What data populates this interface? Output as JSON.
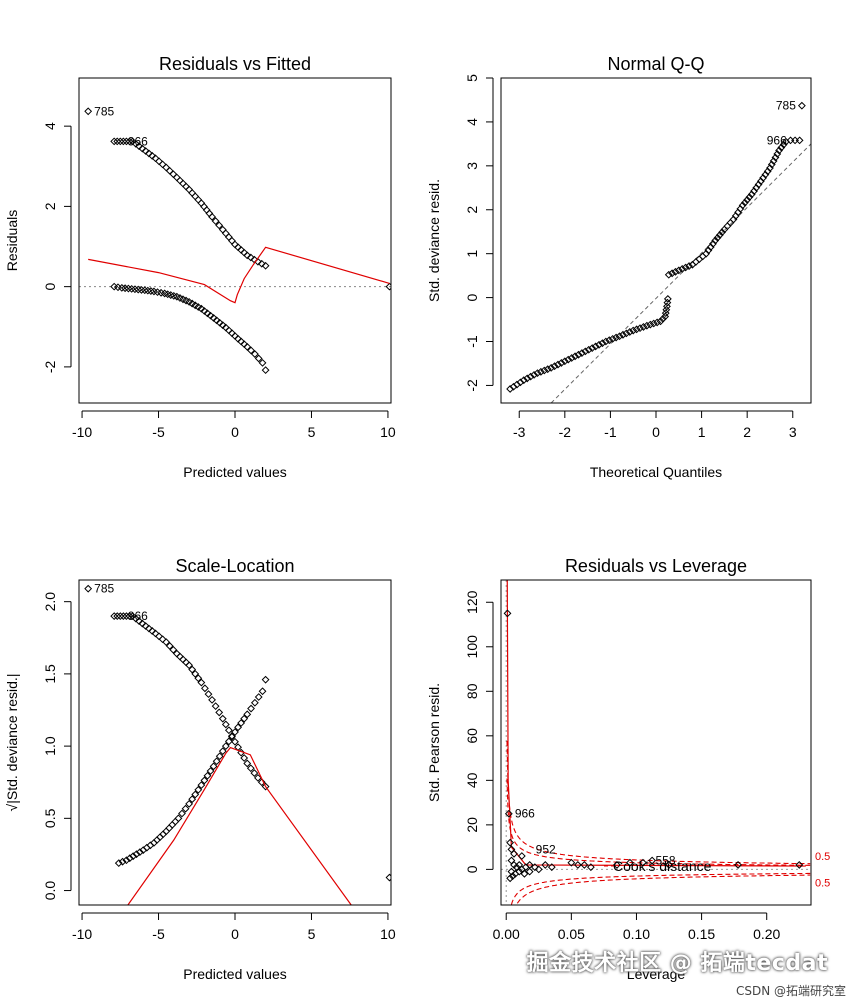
{
  "chart_data": [
    {
      "type": "scatter",
      "title": "Residuals vs Fitted",
      "xlabel": "Predicted values",
      "ylabel": "Residuals",
      "xlim": [
        -10.2,
        10.2
      ],
      "ylim": [
        -2.9,
        5.2
      ],
      "xticks": [
        -10,
        -5,
        0,
        5,
        10
      ],
      "yticks": [
        -2,
        0,
        2,
        4
      ],
      "ref_line": {
        "style": "dotted-horizontal",
        "value": 0
      },
      "points_upper": [
        [
          -9.6,
          4.37
        ],
        [
          -7.9,
          3.62
        ],
        [
          -7.5,
          3.62
        ],
        [
          -7.1,
          3.62
        ],
        [
          -6.7,
          3.62
        ],
        [
          -5.2,
          3.2
        ],
        [
          -4.5,
          2.97
        ],
        [
          -3.8,
          2.72
        ],
        [
          -3.0,
          2.42
        ],
        [
          -2.2,
          2.08
        ],
        [
          -1.5,
          1.74
        ],
        [
          -0.8,
          1.42
        ],
        [
          0.0,
          1.05
        ],
        [
          0.8,
          0.78
        ],
        [
          1.5,
          0.62
        ],
        [
          2.0,
          0.52
        ]
      ],
      "points_lower": [
        [
          -7.9,
          0.0
        ],
        [
          -7.4,
          -0.03
        ],
        [
          -5.9,
          -0.09
        ],
        [
          -5.3,
          -0.12
        ],
        [
          -4.6,
          -0.17
        ],
        [
          -3.8,
          -0.25
        ],
        [
          -3.0,
          -0.38
        ],
        [
          -2.2,
          -0.55
        ],
        [
          -1.4,
          -0.78
        ],
        [
          -0.6,
          -1.02
        ],
        [
          0.2,
          -1.3
        ],
        [
          0.8,
          -1.5
        ],
        [
          1.3,
          -1.68
        ],
        [
          1.8,
          -1.9
        ],
        [
          2.0,
          -2.08
        ],
        [
          10.1,
          0.0
        ]
      ],
      "smooth": [
        [
          -9.6,
          0.68
        ],
        [
          -5.0,
          0.35
        ],
        [
          -2.0,
          0.05
        ],
        [
          -0.3,
          -0.35
        ],
        [
          0.0,
          -0.4
        ],
        [
          0.15,
          -0.2
        ],
        [
          0.6,
          0.2
        ],
        [
          1.2,
          0.55
        ],
        [
          2.0,
          0.98
        ],
        [
          10.1,
          0.08
        ]
      ],
      "labels": [
        {
          "text": "785",
          "x": -9.6,
          "y": 4.37
        },
        {
          "text": "966",
          "x": -7.4,
          "y": 3.62
        }
      ]
    },
    {
      "type": "scatter",
      "title": "Normal Q-Q",
      "xlabel": "Theoretical Quantiles",
      "ylabel": "Std. deviance resid.",
      "xlim": [
        -3.4,
        3.4
      ],
      "ylim": [
        -2.4,
        5.0
      ],
      "xticks": [
        -3,
        -2,
        -1,
        0,
        1,
        2,
        3
      ],
      "yticks": [
        -2,
        -1,
        0,
        1,
        2,
        3,
        4,
        5
      ],
      "ref_line": {
        "style": "dashed",
        "from": [
          -2.3,
          -2.4
        ],
        "to": [
          3.4,
          3.5
        ]
      },
      "points_lower": [
        [
          -3.2,
          -2.08
        ],
        [
          -2.9,
          -1.88
        ],
        [
          -2.6,
          -1.72
        ],
        [
          -2.3,
          -1.6
        ],
        [
          -2.0,
          -1.45
        ],
        [
          -1.7,
          -1.3
        ],
        [
          -1.4,
          -1.15
        ],
        [
          -1.1,
          -1.0
        ],
        [
          -0.8,
          -0.88
        ],
        [
          -0.5,
          -0.75
        ],
        [
          -0.2,
          -0.64
        ],
        [
          0.1,
          -0.54
        ],
        [
          0.2,
          -0.43
        ],
        [
          0.24,
          -0.2
        ],
        [
          0.26,
          -0.03
        ]
      ],
      "points_upper": [
        [
          0.28,
          0.52
        ],
        [
          0.5,
          0.62
        ],
        [
          0.8,
          0.75
        ],
        [
          1.1,
          1.0
        ],
        [
          1.3,
          1.3
        ],
        [
          1.5,
          1.55
        ],
        [
          1.7,
          1.78
        ],
        [
          1.9,
          2.1
        ],
        [
          2.1,
          2.35
        ],
        [
          2.3,
          2.65
        ],
        [
          2.5,
          2.95
        ],
        [
          2.7,
          3.35
        ],
        [
          2.85,
          3.55
        ],
        [
          2.95,
          3.58
        ],
        [
          3.05,
          3.58
        ],
        [
          3.15,
          3.58
        ],
        [
          3.2,
          4.37
        ]
      ],
      "labels": [
        {
          "text": "785",
          "x": 3.2,
          "y": 4.37
        },
        {
          "text": "966",
          "x": 3.0,
          "y": 3.58
        }
      ]
    },
    {
      "type": "scatter",
      "title": "Scale-Location",
      "xlabel": "Predicted values",
      "ylabel": "√|Std. deviance resid.|",
      "xlim": [
        -10.2,
        10.2
      ],
      "ylim": [
        -0.1,
        2.15
      ],
      "xticks": [
        -10,
        -5,
        0,
        5,
        10
      ],
      "yticks": [
        0.0,
        0.5,
        1.0,
        1.5,
        2.0
      ],
      "points_upper": [
        [
          -9.6,
          2.09
        ],
        [
          -7.9,
          1.9
        ],
        [
          -7.5,
          1.9
        ],
        [
          -7.1,
          1.9
        ],
        [
          -6.7,
          1.9
        ],
        [
          -5.2,
          1.78
        ],
        [
          -4.5,
          1.72
        ],
        [
          -3.8,
          1.64
        ],
        [
          -3.0,
          1.56
        ],
        [
          -2.2,
          1.44
        ],
        [
          -1.5,
          1.32
        ],
        [
          -0.8,
          1.19
        ],
        [
          0.0,
          1.03
        ],
        [
          0.8,
          0.88
        ],
        [
          1.5,
          0.78
        ],
        [
          2.0,
          0.72
        ]
      ],
      "points_lower": [
        [
          -7.6,
          0.19
        ],
        [
          -7.1,
          0.21
        ],
        [
          -6.0,
          0.28
        ],
        [
          -5.3,
          0.33
        ],
        [
          -4.5,
          0.41
        ],
        [
          -3.7,
          0.5
        ],
        [
          -3.0,
          0.6
        ],
        [
          -2.2,
          0.73
        ],
        [
          -1.4,
          0.86
        ],
        [
          -0.6,
          1.0
        ],
        [
          0.2,
          1.13
        ],
        [
          0.8,
          1.22
        ],
        [
          1.3,
          1.3
        ],
        [
          1.8,
          1.38
        ],
        [
          2.0,
          1.46
        ],
        [
          10.1,
          0.09
        ]
      ],
      "smooth": [
        [
          -7.0,
          -0.1
        ],
        [
          -4.0,
          0.35
        ],
        [
          -2.0,
          0.7
        ],
        [
          -0.6,
          0.95
        ],
        [
          -0.3,
          0.99
        ],
        [
          1.0,
          0.94
        ],
        [
          2.0,
          0.72
        ],
        [
          7.6,
          -0.1
        ]
      ],
      "labels": [
        {
          "text": "785",
          "x": -9.6,
          "y": 2.09
        },
        {
          "text": "966",
          "x": -7.4,
          "y": 1.9
        }
      ]
    },
    {
      "type": "scatter",
      "title": "Residuals vs Leverage",
      "xlabel": "Leverage",
      "ylabel": "Std. Pearson resid.",
      "xlim": [
        -0.004,
        0.234
      ],
      "ylim": [
        -16,
        130
      ],
      "xticks": [
        0.0,
        0.05,
        0.1,
        0.15,
        0.2
      ],
      "xtick_labels": [
        "0.00",
        "0.05",
        "0.10",
        "0.15",
        "0.20"
      ],
      "yticks": [
        0,
        20,
        40,
        60,
        80,
        100,
        120
      ],
      "points": [
        [
          0.001,
          115
        ],
        [
          0.002,
          25
        ],
        [
          0.003,
          12
        ],
        [
          0.004,
          9
        ],
        [
          0.006,
          7
        ],
        [
          0.012,
          6
        ],
        [
          0.004,
          4
        ],
        [
          0.006,
          2
        ],
        [
          0.008,
          1
        ],
        [
          0.01,
          2
        ],
        [
          0.012,
          0
        ],
        [
          0.015,
          1
        ],
        [
          0.018,
          2
        ],
        [
          0.022,
          1
        ],
        [
          0.025,
          0
        ],
        [
          0.03,
          2
        ],
        [
          0.035,
          1
        ],
        [
          0.004,
          -1
        ],
        [
          0.007,
          -2
        ],
        [
          0.01,
          -1
        ],
        [
          0.014,
          -2
        ],
        [
          0.018,
          -1
        ],
        [
          0.05,
          3
        ],
        [
          0.055,
          2
        ],
        [
          0.06,
          2
        ],
        [
          0.065,
          1
        ],
        [
          0.085,
          2
        ],
        [
          0.095,
          3
        ],
        [
          0.105,
          3
        ],
        [
          0.112,
          4
        ],
        [
          0.125,
          2
        ],
        [
          0.178,
          2
        ],
        [
          0.225,
          2
        ],
        [
          0.003,
          -4
        ],
        [
          0.005,
          -3
        ]
      ],
      "labels": [
        {
          "text": "966",
          "x": 0.002,
          "y": 25
        },
        {
          "text": "952",
          "x": 0.018,
          "y": 9
        },
        {
          "text": "558",
          "x": 0.11,
          "y": 4
        }
      ],
      "cooks_legend": "Cook's distance",
      "contour_labels": [
        "0.5",
        "0.5"
      ],
      "cook_levels": [
        0.5,
        1.0
      ]
    }
  ],
  "watermark": {
    "main": "掘金技术社区 @ 拓端tecdat",
    "sub": "CSDN @拓端研究室"
  },
  "colors": {
    "points": "#000000",
    "smooth": "#e00000",
    "reference": "#666666",
    "text": "#000000"
  }
}
